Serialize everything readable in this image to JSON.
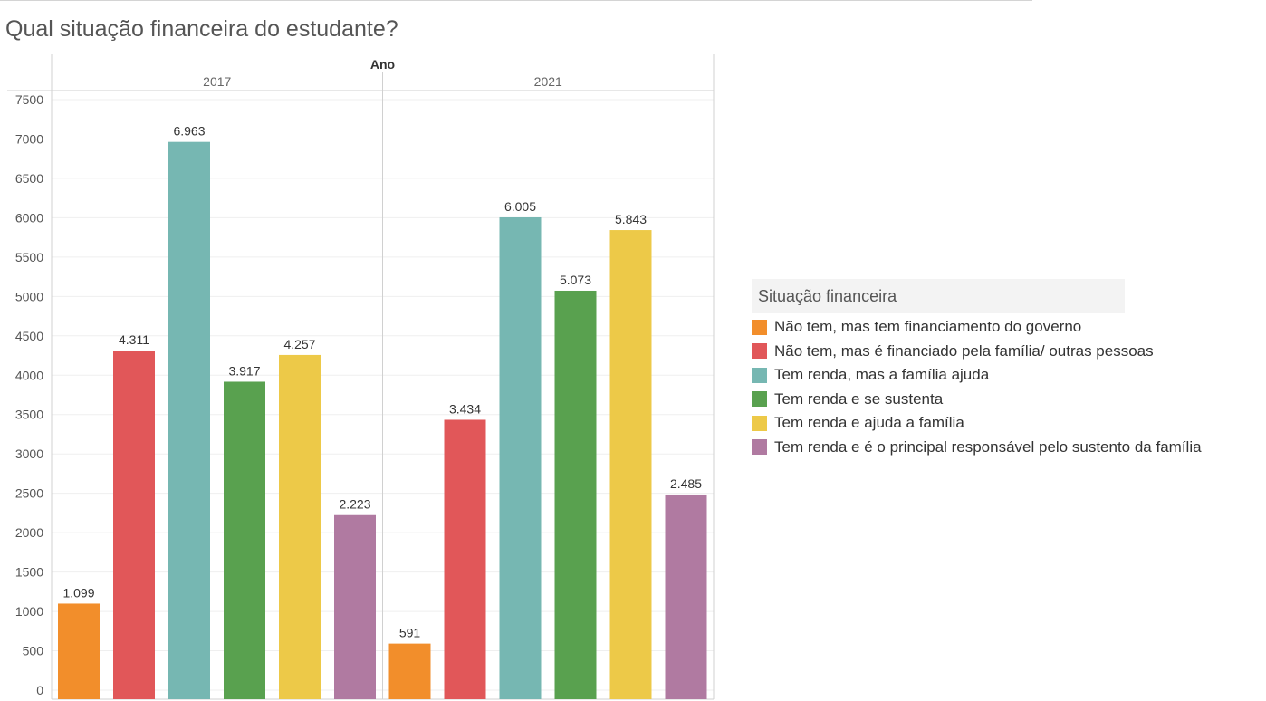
{
  "title": "Qual situação financeira do estudante?",
  "legend": {
    "title": "Situação financeira",
    "items": [
      {
        "label": " Não tem, mas tem financiamento do governo",
        "color": "#f28e2b"
      },
      {
        "label": " Não tem, mas é financiado pela família/ outras pessoas",
        "color": "#e15759"
      },
      {
        "label": "Tem renda, mas a família ajuda",
        "color": "#76b7b2"
      },
      {
        "label": "Tem renda e se sustenta",
        "color": "#59a14f"
      },
      {
        "label": "Tem renda e ajuda a família",
        "color": "#edc948"
      },
      {
        "label": "Tem renda e é o principal responsável pelo sustento da família",
        "color": "#b07aa1"
      }
    ]
  },
  "chart_data": {
    "type": "bar",
    "column_header": "Ano",
    "ylim": [
      0,
      7500
    ],
    "yticks": [
      0,
      500,
      1000,
      1500,
      2000,
      2500,
      3000,
      3500,
      4000,
      4500,
      5000,
      5500,
      6000,
      6500,
      7000,
      7500
    ],
    "grid": true,
    "legend_position": "right",
    "categories": [
      "Não tem, mas tem financiamento do governo",
      "Não tem, mas é financiado pela família/ outras pessoas",
      "Tem renda, mas a família ajuda",
      "Tem renda e se sustenta",
      "Tem renda e ajuda a família",
      "Tem renda e é o principal responsável pelo sustento da família"
    ],
    "panels": [
      {
        "name": "2017",
        "values": [
          1099,
          4311,
          6963,
          3917,
          4257,
          2223
        ],
        "labels": [
          "1.099",
          "4.311",
          "6.963",
          "3.917",
          "4.257",
          "2.223"
        ]
      },
      {
        "name": "2021",
        "values": [
          591,
          3434,
          6005,
          5073,
          5843,
          2485
        ],
        "labels": [
          "591",
          "3.434",
          "6.005",
          "5.073",
          "5.843",
          "2.485"
        ]
      }
    ]
  }
}
